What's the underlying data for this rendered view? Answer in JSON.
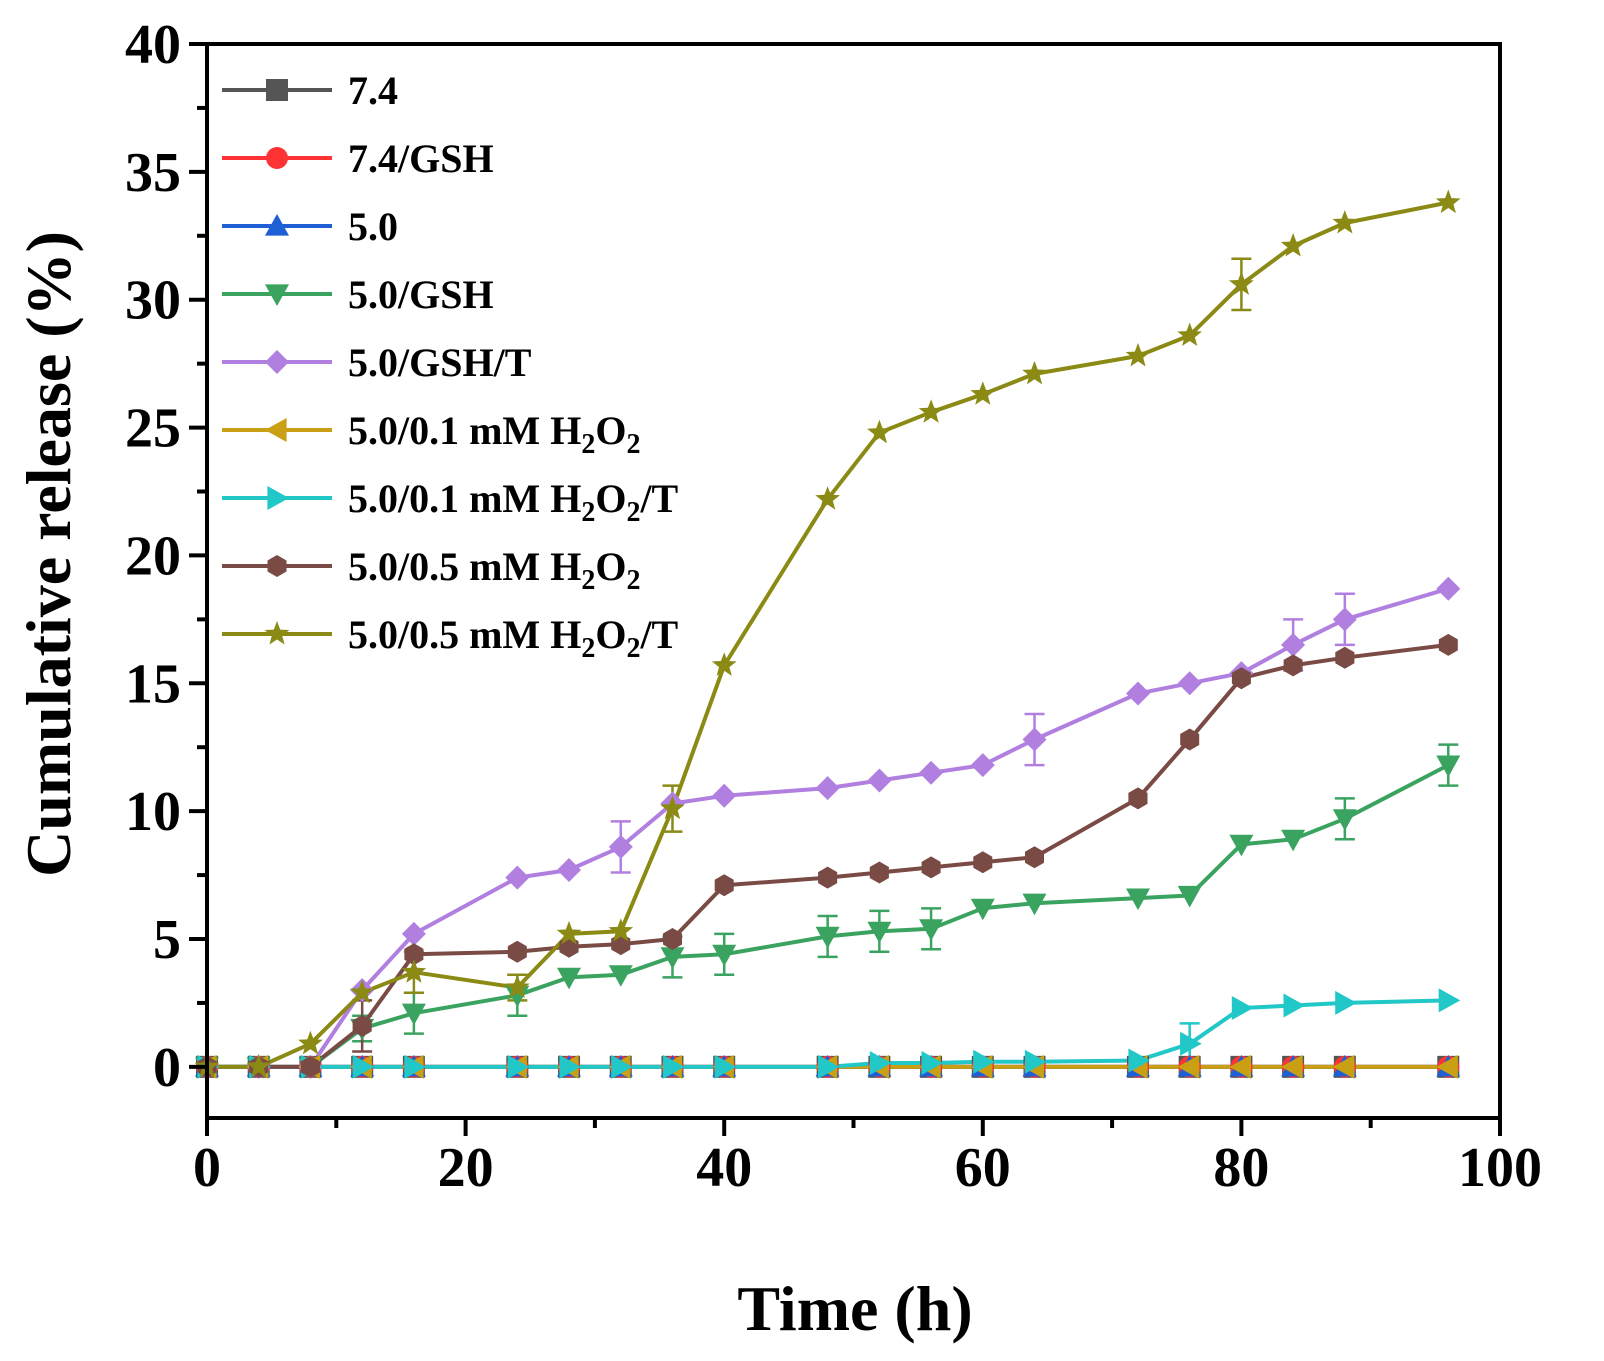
{
  "chart_data": {
    "type": "line",
    "title": "",
    "xlabel": "Time (h)",
    "ylabel": "Cumulative release (%)",
    "xlim": [
      0,
      100
    ],
    "ylim": [
      -2,
      40
    ],
    "x_ticks": [
      "0",
      "20",
      "40",
      "60",
      "80",
      "100"
    ],
    "x_tick_values": [
      0,
      20,
      40,
      60,
      80,
      100
    ],
    "y_ticks": [
      "0",
      "5",
      "10",
      "15",
      "20",
      "25",
      "30",
      "35",
      "40"
    ],
    "y_tick_values": [
      0,
      5,
      10,
      15,
      20,
      25,
      30,
      35,
      40
    ],
    "grid": false,
    "legend_position": "top-left",
    "series": [
      {
        "name": "7.4",
        "label_parts": [
          {
            "t": "7.4"
          }
        ],
        "color": "#555555",
        "marker": "square",
        "x": [
          0,
          4,
          8,
          12,
          16,
          24,
          28,
          32,
          36,
          40,
          48,
          52,
          56,
          60,
          64,
          72,
          76,
          80,
          84,
          88,
          96
        ],
        "y": [
          0,
          0,
          0,
          0,
          0,
          0,
          0,
          0,
          0,
          0,
          0,
          0,
          0,
          0,
          0,
          0,
          0,
          0,
          0,
          0,
          0
        ]
      },
      {
        "name": "7.4/GSH",
        "label_parts": [
          {
            "t": "7.4/GSH"
          }
        ],
        "color": "#ff3333",
        "marker": "circle",
        "x": [
          0,
          4,
          8,
          12,
          16,
          24,
          28,
          32,
          36,
          40,
          48,
          52,
          56,
          60,
          64,
          72,
          76,
          80,
          84,
          88,
          96
        ],
        "y": [
          0,
          0,
          0,
          0,
          0,
          0,
          0,
          0,
          0,
          0,
          0,
          0,
          0,
          0,
          0,
          0,
          0,
          0,
          0,
          0,
          0
        ]
      },
      {
        "name": "5.0",
        "label_parts": [
          {
            "t": "5.0"
          }
        ],
        "color": "#1f5fd6",
        "marker": "triangle-up",
        "x": [
          0,
          4,
          8,
          12,
          16,
          24,
          28,
          32,
          36,
          40,
          48,
          52,
          56,
          60,
          64,
          72,
          76,
          80,
          84,
          88,
          96
        ],
        "y": [
          0,
          0,
          0,
          0,
          0,
          0,
          0,
          0,
          0,
          0,
          0,
          0,
          0,
          0,
          0,
          0,
          0,
          0,
          0,
          0,
          0
        ]
      },
      {
        "name": "5.0/GSH",
        "label_parts": [
          {
            "t": "5.0/GSH"
          }
        ],
        "color": "#3aa35f",
        "marker": "triangle-down",
        "x": [
          0,
          4,
          8,
          12,
          16,
          24,
          28,
          32,
          36,
          40,
          48,
          52,
          56,
          60,
          64,
          72,
          76,
          80,
          84,
          88,
          96
        ],
        "y": [
          0,
          0,
          0,
          1.5,
          2.1,
          2.8,
          3.5,
          3.6,
          4.3,
          4.4,
          5.1,
          5.3,
          5.4,
          6.2,
          6.4,
          6.6,
          6.7,
          8.7,
          8.9,
          9.7,
          11.8
        ],
        "err": [
          0,
          0,
          0,
          0.5,
          0.8,
          0.8,
          0,
          0,
          0.8,
          0.8,
          0.8,
          0.8,
          0.8,
          0,
          0,
          0,
          0,
          0,
          0,
          0.8,
          0.8
        ]
      },
      {
        "name": "5.0/GSH/T",
        "label_parts": [
          {
            "t": "5.0/GSH/T"
          }
        ],
        "color": "#b07fe0",
        "marker": "diamond",
        "x": [
          0,
          4,
          8,
          12,
          16,
          24,
          28,
          32,
          36,
          40,
          48,
          52,
          56,
          60,
          64,
          72,
          76,
          80,
          84,
          88,
          96
        ],
        "y": [
          0,
          0,
          0,
          3.0,
          5.2,
          7.4,
          7.7,
          8.6,
          10.3,
          10.6,
          10.9,
          11.2,
          11.5,
          11.8,
          12.8,
          14.6,
          15.0,
          15.4,
          16.5,
          17.5,
          18.7
        ],
        "err": [
          0,
          0,
          0,
          0,
          0,
          0,
          0,
          1.0,
          0,
          0,
          0,
          0,
          0,
          0,
          1.0,
          0,
          0,
          0,
          1.0,
          1.0,
          0
        ]
      },
      {
        "name": "5.0/0.1 mM H2O2",
        "label_parts": [
          {
            "t": "5.0/0.1 mM H"
          },
          {
            "t": "2",
            "sub": true
          },
          {
            "t": "O"
          },
          {
            "t": "2",
            "sub": true
          }
        ],
        "color": "#c9a013",
        "marker": "triangle-left",
        "x": [
          0,
          4,
          8,
          12,
          16,
          24,
          28,
          32,
          36,
          40,
          48,
          52,
          56,
          60,
          64,
          72,
          76,
          80,
          84,
          88,
          96
        ],
        "y": [
          0,
          0,
          0,
          0,
          0,
          0,
          0,
          0,
          0,
          0,
          0,
          0,
          0,
          0,
          0,
          0,
          0,
          0,
          0,
          0,
          0
        ]
      },
      {
        "name": "5.0/0.1 mM H2O2/T",
        "label_parts": [
          {
            "t": "5.0/0.1 mM H"
          },
          {
            "t": "2",
            "sub": true
          },
          {
            "t": "O"
          },
          {
            "t": "2",
            "sub": true
          },
          {
            "t": "/T"
          }
        ],
        "color": "#22c7c7",
        "marker": "triangle-right",
        "x": [
          0,
          4,
          8,
          12,
          16,
          24,
          28,
          32,
          36,
          40,
          48,
          52,
          56,
          60,
          64,
          72,
          76,
          80,
          84,
          88,
          96
        ],
        "y": [
          0,
          0,
          0,
          0,
          0,
          0,
          0,
          0,
          0,
          0,
          0,
          0.15,
          0.15,
          0.2,
          0.2,
          0.25,
          0.9,
          2.3,
          2.4,
          2.5,
          2.6
        ],
        "err": [
          0,
          0,
          0,
          0,
          0,
          0,
          0,
          0,
          0,
          0,
          0,
          0,
          0,
          0,
          0,
          0,
          0.8,
          0,
          0,
          0,
          0
        ]
      },
      {
        "name": "5.0/0.5 mM H2O2",
        "label_parts": [
          {
            "t": "5.0/0.5 mM H"
          },
          {
            "t": "2",
            "sub": true
          },
          {
            "t": "O"
          },
          {
            "t": "2",
            "sub": true
          }
        ],
        "color": "#7a4a45",
        "marker": "hexagon",
        "x": [
          0,
          4,
          8,
          12,
          16,
          24,
          28,
          32,
          36,
          40,
          48,
          52,
          56,
          60,
          64,
          72,
          76,
          80,
          84,
          88,
          96
        ],
        "y": [
          0,
          0,
          0,
          1.6,
          4.4,
          4.5,
          4.7,
          4.8,
          5.0,
          7.1,
          7.4,
          7.6,
          7.8,
          8.0,
          8.2,
          10.5,
          12.8,
          15.2,
          15.7,
          16.0,
          16.5
        ],
        "err": [
          0,
          0,
          0,
          1.0,
          0,
          0,
          0,
          0,
          0,
          0,
          0,
          0,
          0,
          0,
          0,
          0,
          0,
          0,
          0,
          0,
          0
        ]
      },
      {
        "name": "5.0/0.5 mM H2O2/T",
        "label_parts": [
          {
            "t": "5.0/0.5 mM H"
          },
          {
            "t": "2",
            "sub": true
          },
          {
            "t": "O"
          },
          {
            "t": "2",
            "sub": true
          },
          {
            "t": "/T"
          }
        ],
        "color": "#8a8a14",
        "marker": "star",
        "x": [
          0,
          4,
          8,
          12,
          16,
          24,
          28,
          32,
          36,
          40,
          48,
          52,
          56,
          60,
          64,
          72,
          76,
          80,
          84,
          88,
          96
        ],
        "y": [
          0,
          0,
          0.9,
          2.9,
          3.7,
          3.1,
          5.2,
          5.3,
          10.1,
          15.7,
          22.2,
          24.8,
          25.6,
          26.3,
          27.1,
          27.8,
          28.6,
          30.6,
          32.1,
          33.0,
          33.8
        ],
        "err": [
          0,
          0,
          0,
          0,
          0.8,
          0.5,
          0,
          0,
          0.9,
          0,
          0,
          0,
          0,
          0,
          0,
          0,
          0,
          1.0,
          0,
          0,
          0
        ]
      }
    ]
  }
}
